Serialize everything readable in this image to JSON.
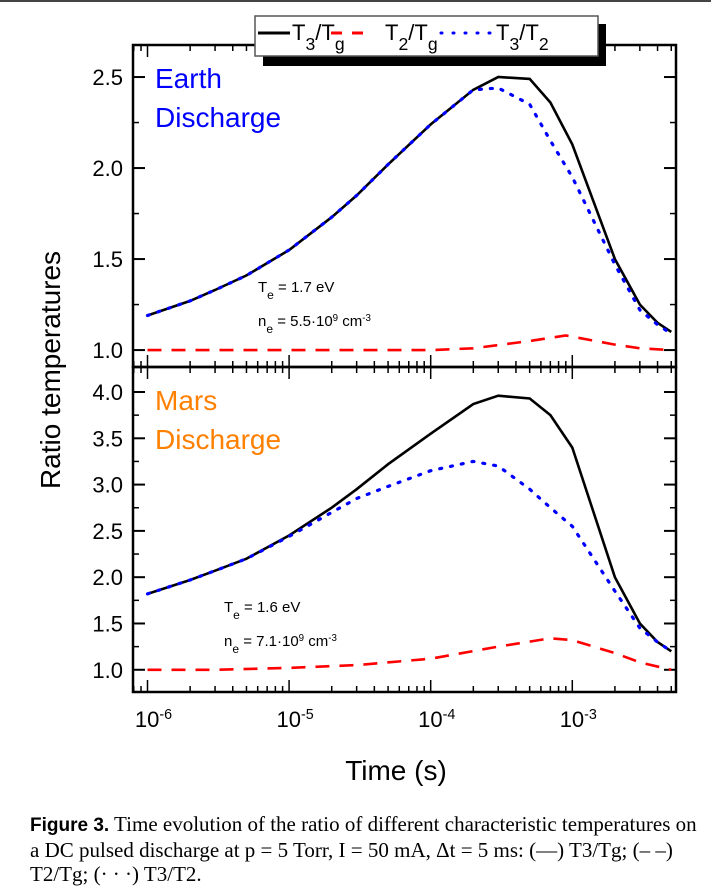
{
  "chart_data": {
    "type": "line",
    "xscale": "log",
    "xlabel": "Time (s)",
    "ylabel": "Ratio temperatures",
    "xlim": [
      7.9e-07,
      0.0054
    ],
    "xticks": [
      "10^-6",
      "10^-5",
      "10^-4",
      "10^-3"
    ],
    "legend": {
      "placement": "top",
      "entries": [
        {
          "label_main": "T",
          "sub1": "3",
          "mid": "/T",
          "sub2": "g",
          "style": "solid",
          "color": "#000000"
        },
        {
          "label_main": "T",
          "sub1": "2",
          "mid": "/T",
          "sub2": "g",
          "style": "dashed",
          "color": "#ff0000"
        },
        {
          "label_main": "T",
          "sub1": "3",
          "mid": "/T",
          "sub2": "2",
          "style": "dotted",
          "color": "#0000ff"
        }
      ]
    },
    "panels": [
      {
        "title_line1": "Earth",
        "title_line2": "Discharge",
        "title_color": "#0000ff",
        "te": "T",
        "te_sub": "e",
        "te_val": " = 1.7 eV",
        "ne": "n",
        "ne_sub": "e",
        "ne_val": " = 5.5·10",
        "ne_exp": "9",
        "ne_unit": " cm",
        "ne_unit_exp": "-3",
        "ylim": [
          0.907,
          2.676
        ],
        "yticks": [
          1.0,
          1.5,
          2.0,
          2.5
        ],
        "series": [
          {
            "style": "solid",
            "color": "#000000",
            "x": [
              1e-06,
              2e-06,
              3e-06,
              5e-06,
              1e-05,
              2e-05,
              3e-05,
              5e-05,
              0.0001,
              0.0002,
              0.0003,
              0.0005,
              0.0007,
              0.001,
              0.002,
              0.003,
              0.004,
              0.005
            ],
            "y": [
              1.19,
              1.27,
              1.33,
              1.41,
              1.55,
              1.73,
              1.85,
              2.02,
              2.24,
              2.43,
              2.5,
              2.49,
              2.36,
              2.13,
              1.5,
              1.25,
              1.15,
              1.1
            ]
          },
          {
            "style": "dashed",
            "color": "#ff0000",
            "x": [
              1e-06,
              1e-05,
              5e-05,
              0.0001,
              0.0002,
              0.0005,
              0.0009,
              0.002,
              0.003,
              0.005
            ],
            "y": [
              1.0,
              1.0,
              1.0,
              1.0,
              1.01,
              1.05,
              1.08,
              1.03,
              1.01,
              1.0
            ]
          },
          {
            "style": "dotted",
            "color": "#0000ff",
            "x": [
              1e-06,
              2e-06,
              3e-06,
              5e-06,
              1e-05,
              2e-05,
              3e-05,
              5e-05,
              0.0001,
              0.0002,
              0.0003,
              0.0005,
              0.0007,
              0.001,
              0.002,
              0.003,
              0.004,
              0.005
            ],
            "y": [
              1.19,
              1.27,
              1.33,
              1.41,
              1.55,
              1.73,
              1.85,
              2.02,
              2.24,
              2.43,
              2.44,
              2.35,
              2.15,
              1.95,
              1.47,
              1.22,
              1.14,
              1.09
            ]
          }
        ]
      },
      {
        "title_line1": "Mars",
        "title_line2": "Discharge",
        "title_color": "#ff8000",
        "te": "T",
        "te_sub": "e",
        "te_val": " = 1.6 eV",
        "ne": "n",
        "ne_sub": "e",
        "ne_val": " = 7.1·10",
        "ne_exp": "9",
        "ne_unit": " cm",
        "ne_unit_exp": "-3",
        "ylim": [
          0.76,
          4.27
        ],
        "yticks": [
          1.0,
          1.5,
          2.0,
          2.5,
          3.0,
          3.5,
          4.0
        ],
        "series": [
          {
            "style": "solid",
            "color": "#000000",
            "x": [
              1e-06,
              2e-06,
              3e-06,
              5e-06,
              1e-05,
              2e-05,
              3e-05,
              5e-05,
              0.0001,
              0.0002,
              0.0003,
              0.0005,
              0.0007,
              0.001,
              0.002,
              0.003,
              0.004,
              0.005
            ],
            "y": [
              1.82,
              1.97,
              2.07,
              2.2,
              2.45,
              2.75,
              2.95,
              3.22,
              3.55,
              3.87,
              3.96,
              3.93,
              3.75,
              3.4,
              2.0,
              1.5,
              1.3,
              1.2
            ]
          },
          {
            "style": "dashed",
            "color": "#ff0000",
            "x": [
              1e-06,
              3e-06,
              1e-05,
              3e-05,
              0.0001,
              0.0003,
              0.0007,
              0.001,
              0.002,
              0.003,
              0.005
            ],
            "y": [
              1.0,
              1.0,
              1.02,
              1.05,
              1.12,
              1.25,
              1.34,
              1.32,
              1.18,
              1.08,
              1.0
            ]
          },
          {
            "style": "dotted",
            "color": "#0000ff",
            "x": [
              1e-06,
              2e-06,
              3e-06,
              5e-06,
              1e-05,
              2e-05,
              3e-05,
              5e-05,
              0.0001,
              0.0002,
              0.0003,
              0.0005,
              0.0007,
              0.001,
              0.002,
              0.003,
              0.004,
              0.005
            ],
            "y": [
              1.82,
              1.97,
              2.07,
              2.2,
              2.44,
              2.7,
              2.85,
              2.98,
              3.15,
              3.25,
              3.2,
              2.95,
              2.75,
              2.55,
              1.85,
              1.45,
              1.3,
              1.2
            ]
          }
        ]
      }
    ]
  },
  "caption": {
    "label": "Figure 3.",
    "text": " Time evolution of the ratio of different characteristic temperatures on a DC pulsed discharge at p = 5 Torr, I = 50 mA, Δt = 5 ms: (—) T3/Tg; (– –) T2/Tg; (· · ·) T3/T2."
  }
}
